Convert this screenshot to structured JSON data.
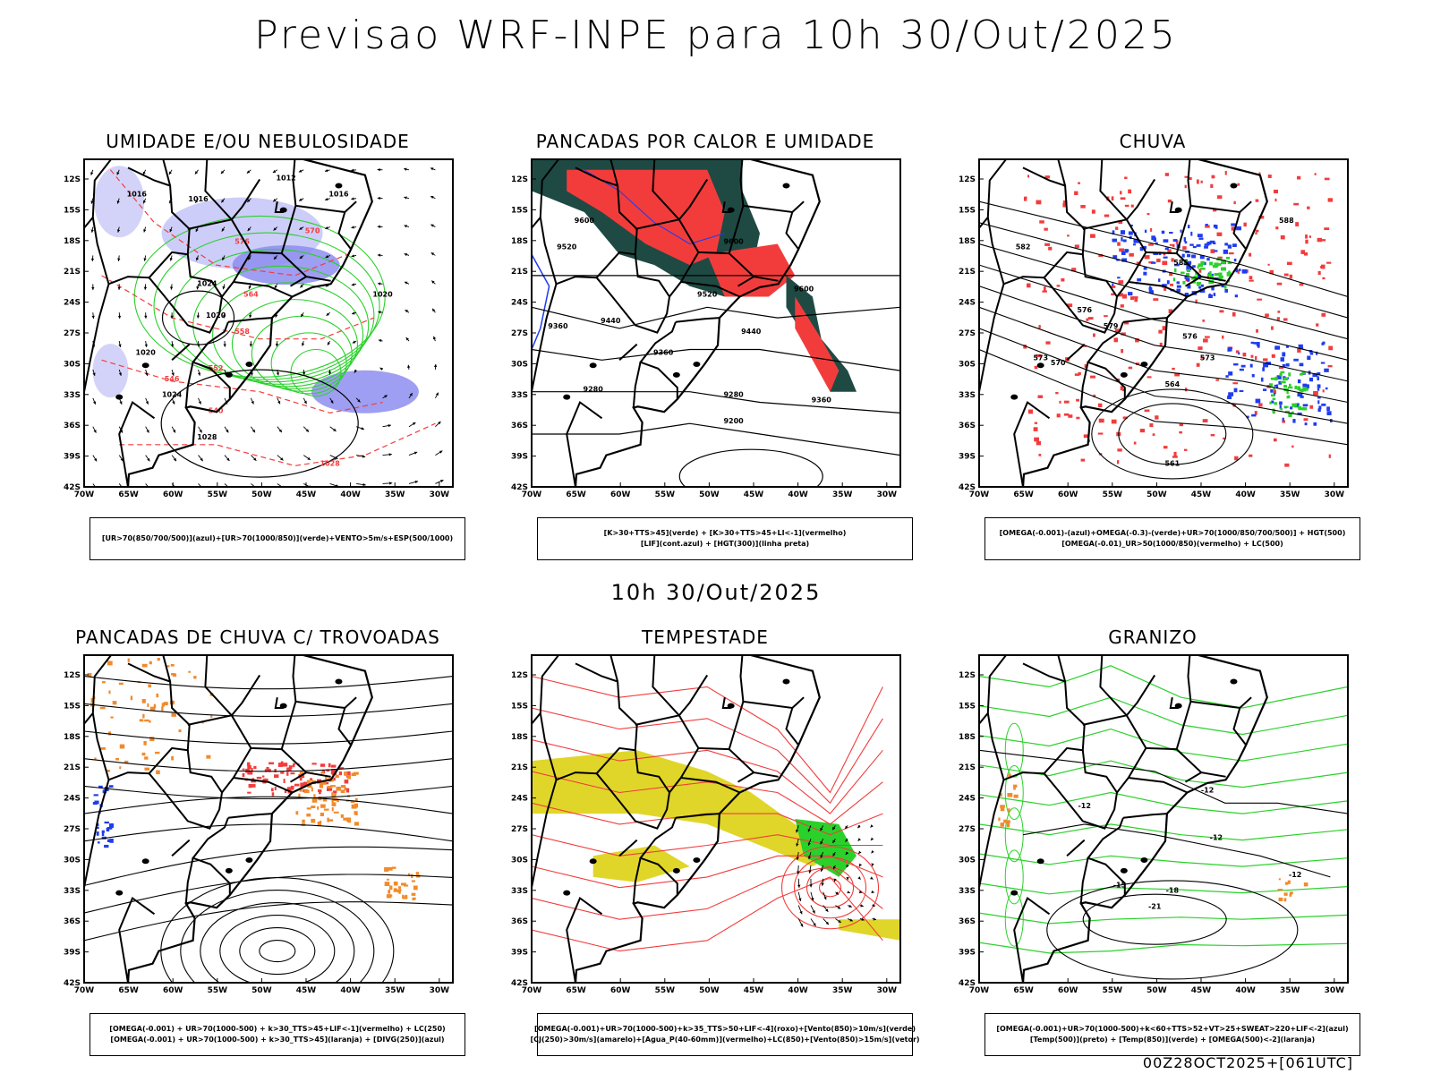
{
  "page": {
    "title": "Previsao WRF-INPE  para 10h 30/Out/2025",
    "subtitle": "10h 30/Out/2025",
    "footer": "00Z28OCT2025+[061UTC]"
  },
  "axes": {
    "lat_labels": [
      "12S",
      "15S",
      "18S",
      "21S",
      "24S",
      "27S",
      "30S",
      "33S",
      "36S",
      "39S",
      "42S"
    ],
    "lon_labels": [
      "70W",
      "65W",
      "60W",
      "55W",
      "50W",
      "45W",
      "40W",
      "35W",
      "30W"
    ]
  },
  "colors": {
    "humidity_mid": "#8d8df0",
    "humidity_low": "#c8c8f8",
    "green": "#2ad12a",
    "red": "#f23c3c",
    "dark_green": "#1f4a44",
    "blue": "#1f3cf0",
    "orange": "#f28a2a",
    "yellow": "#e0d62a",
    "contour": "#000000"
  },
  "panels": [
    {
      "id": "umidade",
      "title": "UMIDADE E/OU NEBULOSIDADE",
      "legend": [
        "[UR>70(850/700/500)](azul)+[UR>70(1000/850)](verde)+VENTO>5m/s+ESP(500/1000)"
      ],
      "labels": [
        "1012",
        "1016",
        "1016",
        "1016",
        "1020",
        "1020",
        "1020",
        "1024",
        "1024",
        "1028",
        "1028",
        "570",
        "576",
        "564",
        "558",
        "552",
        "546",
        "540"
      ]
    },
    {
      "id": "pancadas_calor",
      "title": "PANCADAS POR CALOR E UMIDADE",
      "legend": [
        "[K>30+TTS>45](verde) + [K>30+TTS>45+LI<-1](vermelho)",
        "[LIF](cont.azul) + [HGT(300)](linha preta)"
      ],
      "labels": [
        "9600",
        "9520",
        "9600",
        "9520",
        "9440",
        "9440",
        "9360",
        "9360",
        "9280",
        "9280",
        "9200",
        "9360",
        "9600"
      ]
    },
    {
      "id": "chuva",
      "title": "CHUVA",
      "legend": [
        "[OMEGA(-0.001)-(azul)+OMEGA(-0.3)-(verde)+UR>70(1000/850/700/500)] + HGT(500)",
        "[OMEGA(-0.01)_UR>50(1000/850)(vermelho) + LC(500)"
      ],
      "labels": [
        "582",
        "585",
        "576",
        "579",
        "573",
        "570",
        "576",
        "573",
        "564",
        "561",
        "588"
      ]
    },
    {
      "id": "pancadas_trovoadas",
      "title": "PANCADAS DE CHUVA C/ TROVOADAS",
      "legend": [
        "[OMEGA(-0.001) + UR>70(1000-500) + k>30_TTS>45+LIF<-1](vermelho) + LC(250)",
        "[OMEGA(-0.001) + UR>70(1000-500) + k>30_TTS>45](laranja) + [DIVG(250)](azul)"
      ],
      "labels": []
    },
    {
      "id": "tempestade",
      "title": "TEMPESTADE",
      "legend": [
        "[OMEGA(-0.001)+UR>70(1000-500)+k>35_TTS>50+LIF<-4](roxo)+[Vento(850)>10m/s](verde)",
        "[CJ(250)>30m/s](amarelo)+[Agua_P(40-60mm)](vermelho)+LC(850)+[Vento(850)>15m/s](vetor)"
      ],
      "labels": []
    },
    {
      "id": "granizo",
      "title": "GRANIZO",
      "legend": [
        "[OMEGA(-0.001)+UR>70(1000-500)+k<60+TTS>52+VT>25+SWEAT>220+LIF<-2](azul)",
        "[Temp(500)](preto) + [Temp(850)](verde) + [OMEGA(500)<-2](laranja)"
      ],
      "labels": [
        "-12",
        "-12",
        "-12",
        "-12",
        "-18",
        "-21",
        "-15"
      ]
    }
  ]
}
